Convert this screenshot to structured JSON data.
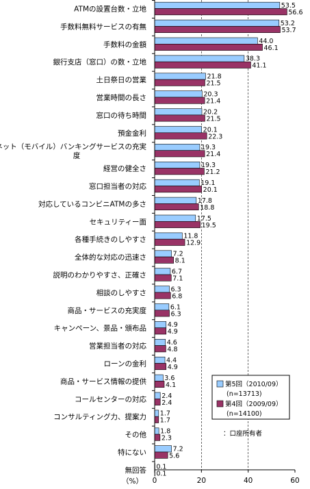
{
  "chart_data": {
    "type": "bar",
    "orientation": "horizontal",
    "categories": [
      "ATMの設置台数・立地",
      "手数料無料サービスの有無",
      "手数料の金額",
      "銀行支店（窓口）の数・立地",
      "土日祭日の営業",
      "営業時間の長さ",
      "窓口の待ち時間",
      "預金金利",
      "ネット（モバイル）バンキングサービスの充実度",
      "経営の健全さ",
      "窓口担当者の対応",
      "対応しているコンビニATMの多さ",
      "セキュリティー面",
      "各種手続きのしやすさ",
      "全体的な対応の迅速さ",
      "説明のわかりやすさ、正確さ",
      "相談のしやすさ",
      "商品・サービスの充実度",
      "キャンペーン、景品・頒布品",
      "営業担当者の対応",
      "ローンの金利",
      "商品・サービス情報の提供",
      "コールセンターの対応",
      "コンサルティング力、提案力",
      "その他",
      "特にない",
      "無回答"
    ],
    "series": [
      {
        "name": "第5回（2010/09）",
        "name_line2": "(n=13713)",
        "color": "#99ccff",
        "values": [
          53.5,
          53.2,
          44.0,
          38.3,
          21.8,
          20.3,
          20.2,
          20.1,
          19.3,
          19.3,
          19.1,
          17.8,
          17.5,
          11.8,
          7.2,
          6.7,
          6.3,
          6.1,
          4.9,
          4.6,
          4.4,
          3.6,
          2.4,
          1.7,
          1.8,
          7.2,
          0.1
        ],
        "labels": [
          "53.5",
          "53.2",
          "44.0",
          "38.3",
          "21.8",
          "20.3",
          "20.2",
          "20.1",
          "19.3",
          "19.3",
          "19.1",
          "17.8",
          "17.5",
          "11.8",
          "7.2",
          "6.7",
          "6.3",
          "6.1",
          "4.9",
          "4.6",
          "4.4",
          "3.6",
          "2.4",
          "1.7",
          "1.8",
          "7.2",
          "0.1"
        ]
      },
      {
        "name": "第4回（2009/09）",
        "name_line2": "(n=14100)",
        "color": "#993366",
        "values": [
          56.6,
          53.7,
          46.1,
          41.1,
          21.5,
          21.4,
          21.5,
          22.3,
          21.4,
          21.2,
          20.1,
          18.8,
          19.5,
          12.9,
          8.1,
          7.1,
          6.8,
          6.3,
          4.9,
          4.8,
          4.9,
          4.1,
          2.4,
          1.7,
          2.3,
          5.6,
          0.1
        ],
        "labels": [
          "56.6",
          "53.7",
          "46.1",
          "41.1",
          "21.5",
          "21.4",
          "21.5",
          "22.3",
          "21.4",
          "21.2",
          "20.1",
          "18.8",
          "19.5",
          "12.9",
          "8.1",
          "7.1",
          "6.8",
          "6.3",
          "4.9",
          "4.8",
          "4.9",
          "4.1",
          "2.4",
          "1.7",
          "2.3",
          "5.6",
          "0.1"
        ]
      }
    ],
    "xlim": [
      0,
      60
    ],
    "xticks": [
      "0",
      "20",
      "40",
      "60"
    ],
    "xunit": "（%）",
    "grid": "dashed vertical at 20 and 40",
    "legend_position": "bottom-right",
    "note": "：口座所有者"
  }
}
